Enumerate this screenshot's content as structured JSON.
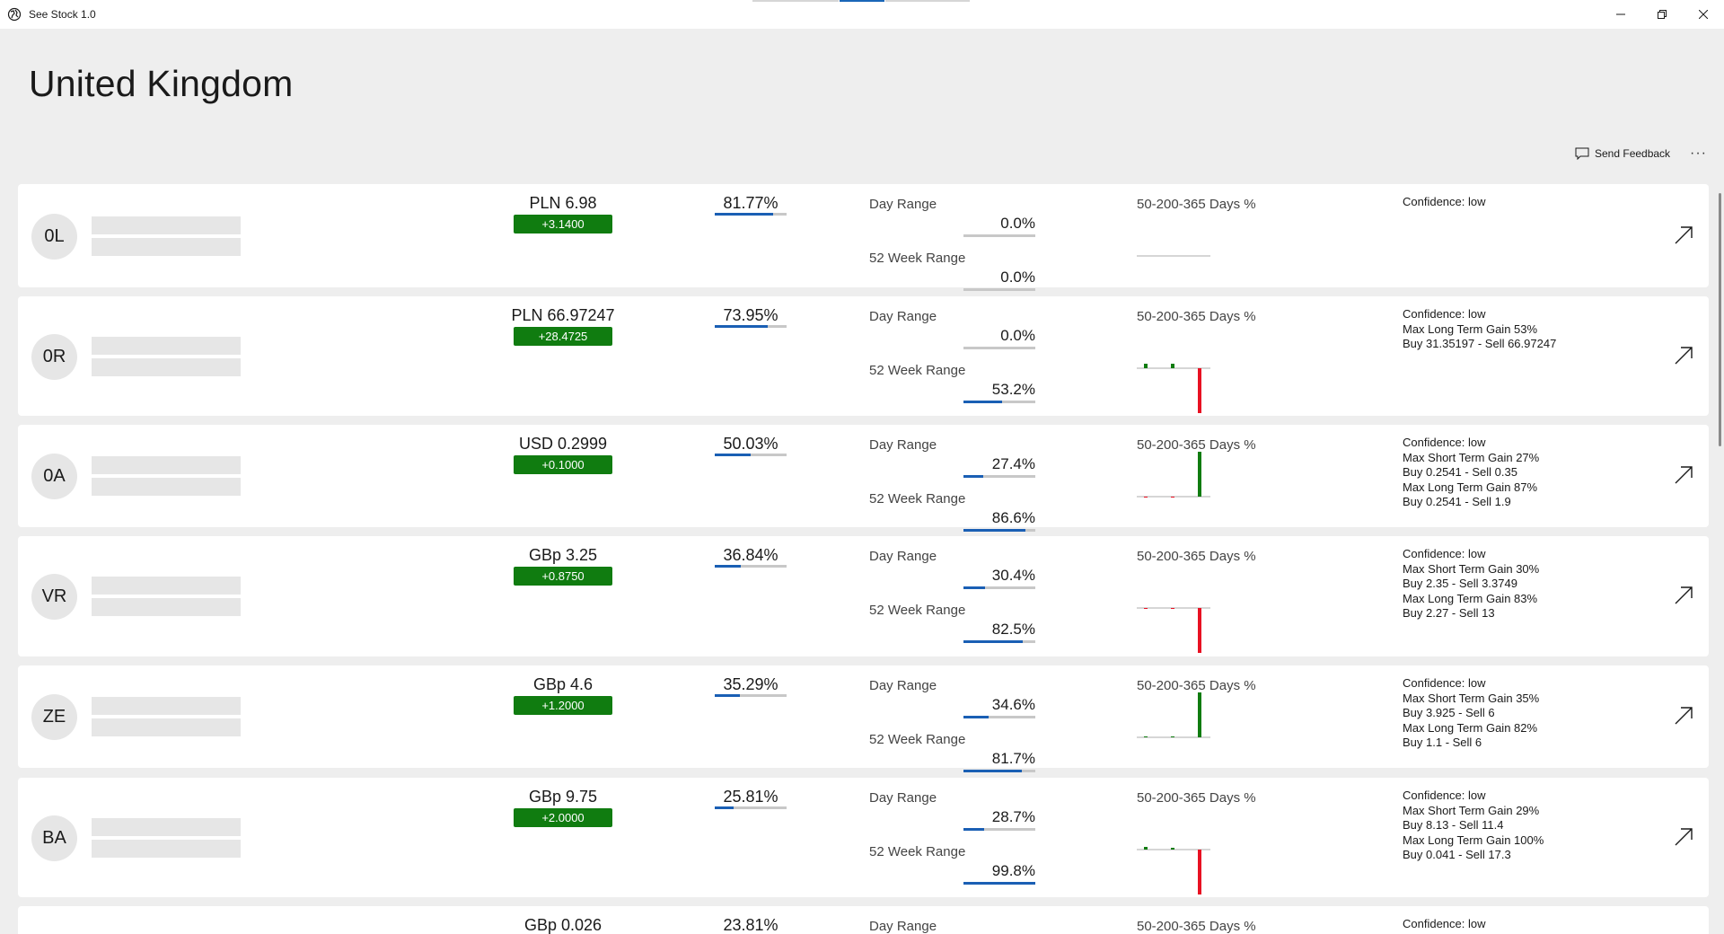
{
  "app": {
    "title": "See Stock 1.0"
  },
  "page": {
    "title": "United Kingdom"
  },
  "toolbar": {
    "feedback_label": "Send Feedback",
    "more_label": "···"
  },
  "labels": {
    "day_range": "Day Range",
    "week_range": "52 Week Range",
    "hist": "50-200-365 Days %"
  },
  "colors": {
    "accent": "#1a5fb4",
    "positive": "#107c10",
    "negative": "#e81123"
  },
  "rows": [
    {
      "initials": "0L",
      "price": "PLN 6.98",
      "change": "+3.1400",
      "pct": "81.77%",
      "pct_value": 81.77,
      "day_range": "0.0%",
      "day_value": 0.0,
      "week_range": "0.0%",
      "week_value": 0.0,
      "hist": [
        0,
        0,
        0
      ],
      "conf": [
        "Confidence: low"
      ]
    },
    {
      "initials": "0R",
      "price": "PLN 66.97247",
      "change": "+28.4725",
      "pct": "73.95%",
      "pct_value": 73.95,
      "day_range": "0.0%",
      "day_value": 0.0,
      "week_range": "53.2%",
      "week_value": 53.2,
      "hist": [
        5,
        5,
        -50
      ],
      "conf": [
        "Confidence: low",
        "Max Long Term Gain 53%",
        "Buy 31.35197 - Sell 66.97247"
      ]
    },
    {
      "initials": "0A",
      "price": "USD 0.2999",
      "change": "+0.1000",
      "pct": "50.03%",
      "pct_value": 50.03,
      "day_range": "27.4%",
      "day_value": 27.4,
      "week_range": "86.6%",
      "week_value": 86.6,
      "hist": [
        -1,
        -1,
        50
      ],
      "conf": [
        "Confidence: low",
        "Max Short Term Gain 27%",
        "Buy 0.2541 - Sell 0.35",
        "Max Long Term Gain 87%",
        "Buy 0.2541 - Sell 1.9"
      ]
    },
    {
      "initials": "VR",
      "price": "GBp 3.25",
      "change": "+0.8750",
      "pct": "36.84%",
      "pct_value": 36.84,
      "day_range": "30.4%",
      "day_value": 30.4,
      "week_range": "82.5%",
      "week_value": 82.5,
      "hist": [
        -1,
        -1,
        -50
      ],
      "conf": [
        "Confidence: low",
        "Max Short Term Gain 30%",
        "Buy 2.35 - Sell 3.3749",
        "Max Long Term Gain 83%",
        "Buy 2.27 - Sell 13"
      ]
    },
    {
      "initials": "ZE",
      "price": "GBp 4.6",
      "change": "+1.2000",
      "pct": "35.29%",
      "pct_value": 35.29,
      "day_range": "34.6%",
      "day_value": 34.6,
      "week_range": "81.7%",
      "week_value": 81.7,
      "hist": [
        1,
        1,
        50
      ],
      "conf": [
        "Confidence: low",
        "Max Short Term Gain 35%",
        "Buy 3.925 - Sell 6",
        "Max Long Term Gain 82%",
        "Buy 1.1 - Sell 6"
      ]
    },
    {
      "initials": "BA",
      "price": "GBp 9.75",
      "change": "+2.0000",
      "pct": "25.81%",
      "pct_value": 25.81,
      "day_range": "28.7%",
      "day_value": 28.7,
      "week_range": "99.8%",
      "week_value": 99.8,
      "hist": [
        3,
        2,
        -50
      ],
      "conf": [
        "Confidence: low",
        "Max Short Term Gain 29%",
        "Buy 8.13 - Sell 11.4",
        "Max Long Term Gain 100%",
        "Buy 0.041 - Sell 17.3"
      ]
    },
    {
      "initials": "",
      "price": "GBp 0.026",
      "change": "",
      "pct": "23.81%",
      "pct_value": 23.81,
      "day_range": "",
      "day_value": 0,
      "week_range": "",
      "week_value": 0,
      "hist": [],
      "conf": [
        "Confidence: low"
      ]
    }
  ]
}
